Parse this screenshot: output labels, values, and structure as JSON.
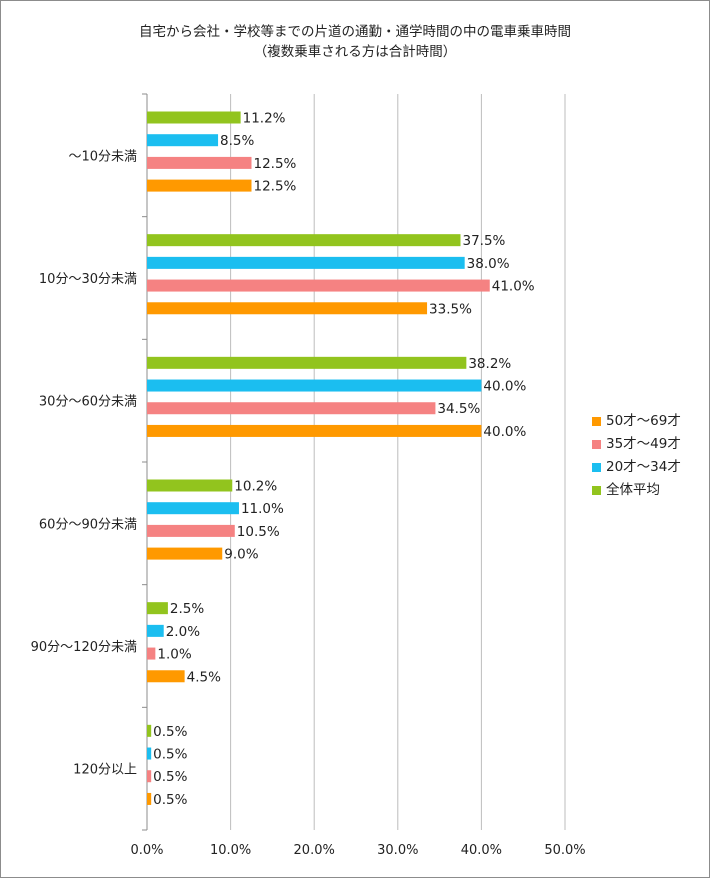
{
  "chart_data": {
    "type": "bar",
    "orientation": "horizontal",
    "title": "自宅から会社・学校等までの片道の通勤・通学時間の中の電車乗車時間",
    "subtitle": "（複数乗車される方は合計時間）",
    "categories": [
      "～10分未満",
      "10分～30分未満",
      "30分～60分未満",
      "60分～90分未満",
      "90分～120分未満",
      "120分以上"
    ],
    "series": [
      {
        "name": "全体平均",
        "color": "#92C41E",
        "values": [
          11.2,
          37.5,
          38.2,
          10.2,
          2.5,
          0.5
        ]
      },
      {
        "name": "20才～34才",
        "color": "#1BBEF0",
        "values": [
          8.5,
          38.0,
          40.0,
          11.0,
          2.0,
          0.5
        ]
      },
      {
        "name": "35才～49才",
        "color": "#F58282",
        "values": [
          12.5,
          41.0,
          34.5,
          10.5,
          1.0,
          0.5
        ]
      },
      {
        "name": "50才～69才",
        "color": "#FF9900",
        "values": [
          12.5,
          33.5,
          40.0,
          9.0,
          4.5,
          0.5
        ]
      }
    ],
    "xlim": [
      0,
      50
    ],
    "xticks": [
      "0.0%",
      "10.0%",
      "20.0%",
      "30.0%",
      "40.0%",
      "50.0%"
    ],
    "value_suffix": "%",
    "grid": true,
    "legend_position": "right",
    "legend_order": [
      "50才～69才",
      "35才～49才",
      "20才～34才",
      "全体平均"
    ]
  }
}
